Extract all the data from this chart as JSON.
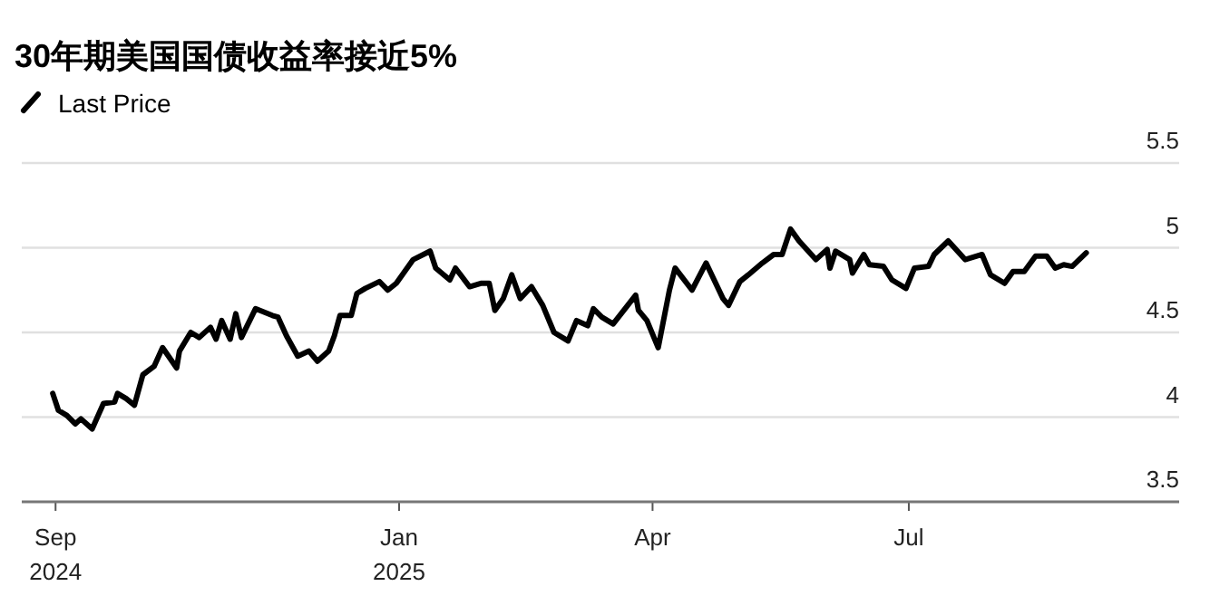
{
  "chart_data": {
    "type": "line",
    "title": "30年期美国国债收益率接近5%",
    "xlim": [
      "2024-08-20",
      "2025-10-05"
    ],
    "xticks": [
      {
        "value": "2024-09-01",
        "label": "Sep\n2024"
      },
      {
        "value": "2025-01-01",
        "label": "Jan\n2025"
      },
      {
        "value": "2025-04-01",
        "label": "Apr"
      },
      {
        "value": "2025-07-01",
        "label": "Jul"
      }
    ],
    "ylim": [
      3.5,
      5.5
    ],
    "yticks": [
      3.5,
      4,
      4.5,
      5,
      5.5
    ],
    "grid": "y",
    "legend": "top left",
    "marker": "none",
    "line_style": "solid",
    "series": [
      {
        "name": "Last Price",
        "color": "#000000",
        "x": [
          "2024-08-31",
          "2024-09-02",
          "2024-09-05",
          "2024-09-08",
          "2024-09-10",
          "2024-09-14",
          "2024-09-18",
          "2024-09-22",
          "2024-09-23",
          "2024-09-26",
          "2024-09-29",
          "2024-10-02",
          "2024-10-06",
          "2024-10-09",
          "2024-10-14",
          "2024-10-15",
          "2024-10-19",
          "2024-10-22",
          "2024-10-26",
          "2024-10-28",
          "2024-10-30",
          "2024-11-02",
          "2024-11-04",
          "2024-11-06",
          "2024-11-11",
          "2024-11-17",
          "2024-11-19",
          "2024-11-22",
          "2024-11-26",
          "2024-11-30",
          "2024-12-03",
          "2024-12-07",
          "2024-12-09",
          "2024-12-11",
          "2024-12-15",
          "2024-12-17",
          "2024-12-20",
          "2024-12-25",
          "2024-12-28",
          "2024-12-31",
          "2025-01-06",
          "2025-01-12",
          "2025-01-14",
          "2025-01-19",
          "2025-01-21",
          "2025-01-26",
          "2025-01-30",
          "2025-02-02",
          "2025-02-04",
          "2025-02-07",
          "2025-02-10",
          "2025-02-13",
          "2025-02-17",
          "2025-02-21",
          "2025-02-25",
          "2025-03-02",
          "2025-03-05",
          "2025-03-09",
          "2025-03-11",
          "2025-03-14",
          "2025-03-18",
          "2025-03-26",
          "2025-03-27",
          "2025-03-30",
          "2025-04-03",
          "2025-04-07",
          "2025-04-09",
          "2025-04-15",
          "2025-04-20",
          "2025-04-26",
          "2025-04-28",
          "2025-05-02",
          "2025-05-05",
          "2025-05-10",
          "2025-05-14",
          "2025-05-17",
          "2025-05-20",
          "2025-05-23",
          "2025-05-29",
          "2025-06-02",
          "2025-06-03",
          "2025-06-05",
          "2025-06-10",
          "2025-06-11",
          "2025-06-15",
          "2025-06-17",
          "2025-06-22",
          "2025-06-25",
          "2025-06-30",
          "2025-07-03",
          "2025-07-08",
          "2025-07-10",
          "2025-07-15",
          "2025-07-21",
          "2025-07-27",
          "2025-07-30",
          "2025-08-04",
          "2025-08-07",
          "2025-08-11",
          "2025-08-15",
          "2025-08-19",
          "2025-08-22",
          "2025-08-25",
          "2025-08-28",
          "2025-09-02"
        ],
        "values": [
          4.14,
          4.04,
          4.01,
          3.96,
          3.99,
          3.93,
          4.08,
          4.09,
          4.14,
          4.11,
          4.07,
          4.25,
          4.3,
          4.41,
          4.29,
          4.39,
          4.5,
          4.47,
          4.53,
          4.46,
          4.57,
          4.46,
          4.61,
          4.47,
          4.64,
          4.6,
          4.59,
          4.48,
          4.36,
          4.39,
          4.33,
          4.39,
          4.48,
          4.6,
          4.6,
          4.73,
          4.76,
          4.8,
          4.75,
          4.79,
          4.93,
          4.98,
          4.88,
          4.81,
          4.88,
          4.77,
          4.79,
          4.79,
          4.63,
          4.7,
          4.84,
          4.7,
          4.77,
          4.66,
          4.5,
          4.45,
          4.57,
          4.54,
          4.64,
          4.59,
          4.55,
          4.72,
          4.63,
          4.57,
          4.41,
          4.75,
          4.88,
          4.75,
          4.91,
          4.7,
          4.66,
          4.8,
          4.84,
          4.91,
          4.96,
          4.96,
          5.11,
          5.04,
          4.93,
          4.99,
          4.88,
          4.98,
          4.93,
          4.85,
          4.96,
          4.9,
          4.89,
          4.81,
          4.76,
          4.88,
          4.89,
          4.96,
          5.04,
          4.93,
          4.96,
          4.84,
          4.79,
          4.86,
          4.86,
          4.95,
          4.95,
          4.88,
          4.9,
          4.89,
          4.97
        ]
      }
    ]
  }
}
